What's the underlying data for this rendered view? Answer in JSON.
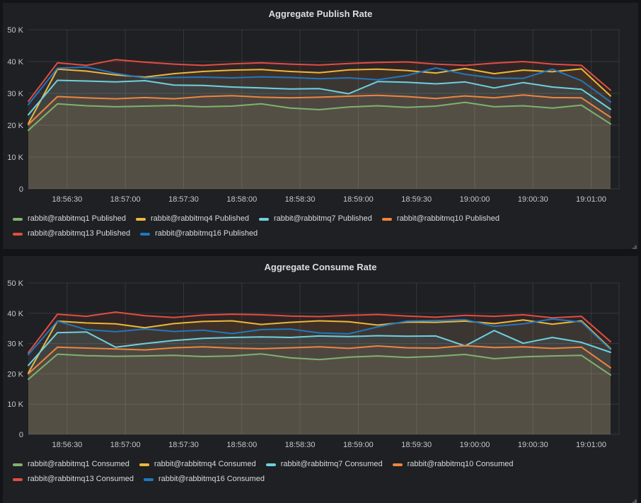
{
  "colors": {
    "page_background": "#131417",
    "panel_background": "#1e2023",
    "grid_line": "rgba(255,255,255,0.10)",
    "axis_text": "#c7c8ca",
    "legend_text": "#d8d9da",
    "title_text": "#dcdde0",
    "resize_handle": "#55585c"
  },
  "chart_data": [
    {
      "type": "line",
      "title": "Aggregate Publish Rate",
      "xlabel": "",
      "ylabel": "",
      "unit": "K",
      "ylim_k": [
        0,
        50
      ],
      "y_ticks": [
        "0",
        "10 K",
        "20 K",
        "30 K",
        "40 K",
        "50 K"
      ],
      "x_ticks": [
        "18:56:30",
        "18:57:00",
        "18:57:30",
        "18:58:00",
        "18:58:30",
        "18:59:00",
        "18:59:30",
        "19:00:00",
        "19:00:30",
        "19:01:00"
      ],
      "x_tick_interval_s": 30,
      "sample_interval_s": 15,
      "x_span_s": 300,
      "grid": true,
      "legend_position": "bottom",
      "series": [
        {
          "name": "rabbit@rabbitmq1 Published",
          "color": "#7EB26D",
          "values_k": [
            18.4,
            26.7,
            26.1,
            25.8,
            26.0,
            26.2,
            25.8,
            26.0,
            26.7,
            25.4,
            24.9,
            25.7,
            26.1,
            25.6,
            26.0,
            27.2,
            25.8,
            26.1,
            25.4,
            26.3,
            20.4
          ]
        },
        {
          "name": "rabbit@rabbitmq4 Published",
          "color": "#EAB839",
          "values_k": [
            20.5,
            37.6,
            37.0,
            35.8,
            35.1,
            36.2,
            36.9,
            37.3,
            37.5,
            36.9,
            36.5,
            37.4,
            37.6,
            37.2,
            36.4,
            37.8,
            36.2,
            37.3,
            36.8,
            37.7,
            29.2
          ]
        },
        {
          "name": "rabbit@rabbitmq7 Published",
          "color": "#6ED0E0",
          "values_k": [
            23.3,
            34.1,
            33.9,
            33.6,
            34.0,
            32.6,
            32.5,
            32.0,
            31.7,
            31.4,
            31.5,
            29.9,
            33.7,
            33.5,
            33.0,
            33.6,
            31.7,
            33.4,
            32.0,
            31.3,
            25.0
          ]
        },
        {
          "name": "rabbit@rabbitmq10 Published",
          "color": "#EF843C",
          "values_k": [
            20.2,
            29.0,
            28.6,
            28.3,
            28.7,
            28.3,
            29.0,
            29.3,
            28.8,
            28.6,
            28.8,
            29.1,
            29.4,
            29.0,
            28.4,
            29.2,
            28.6,
            29.5,
            28.7,
            28.6,
            22.5
          ]
        },
        {
          "name": "rabbit@rabbitmq13 Published",
          "color": "#E24D42",
          "values_k": [
            27.5,
            39.6,
            38.8,
            40.6,
            39.8,
            39.2,
            38.8,
            39.3,
            39.6,
            39.2,
            38.9,
            39.4,
            39.7,
            39.9,
            39.2,
            38.8,
            39.5,
            40.0,
            39.2,
            38.8,
            31.0
          ]
        },
        {
          "name": "rabbit@rabbitmq16 Published",
          "color": "#1F78C1",
          "values_k": [
            26.5,
            37.9,
            38.3,
            36.3,
            34.8,
            35.0,
            35.1,
            34.9,
            35.2,
            35.0,
            34.6,
            34.9,
            34.3,
            35.6,
            38.0,
            36.0,
            34.8,
            34.7,
            37.6,
            34.0,
            27.3
          ]
        }
      ]
    },
    {
      "type": "line",
      "title": "Aggregate Consume Rate",
      "xlabel": "",
      "ylabel": "",
      "unit": "K",
      "ylim_k": [
        0,
        50
      ],
      "y_ticks": [
        "0",
        "10 K",
        "20 K",
        "30 K",
        "40 K",
        "50 K"
      ],
      "x_ticks": [
        "18:56:30",
        "18:57:00",
        "18:57:30",
        "18:58:00",
        "18:58:30",
        "18:59:00",
        "18:59:30",
        "19:00:00",
        "19:00:30",
        "19:01:00"
      ],
      "x_tick_interval_s": 30,
      "sample_interval_s": 15,
      "x_span_s": 300,
      "grid": true,
      "legend_position": "bottom",
      "series": [
        {
          "name": "rabbit@rabbitmq1 Consumed",
          "color": "#7EB26D",
          "values_k": [
            18.2,
            26.5,
            26.0,
            25.8,
            25.9,
            26.1,
            25.7,
            25.9,
            26.6,
            25.3,
            24.7,
            25.5,
            25.9,
            25.4,
            25.8,
            26.4,
            25.0,
            25.6,
            25.9,
            26.1,
            19.6
          ]
        },
        {
          "name": "rabbit@rabbitmq4 Consumed",
          "color": "#EAB839",
          "values_k": [
            20.3,
            37.4,
            36.8,
            36.5,
            35.2,
            36.6,
            37.3,
            37.5,
            36.3,
            37.0,
            37.5,
            37.2,
            36.1,
            37.1,
            37.0,
            37.4,
            36.6,
            37.8,
            36.4,
            37.5,
            28.3
          ]
        },
        {
          "name": "rabbit@rabbitmq7 Consumed",
          "color": "#6ED0E0",
          "values_k": [
            22.8,
            33.6,
            33.8,
            28.8,
            30.0,
            31.0,
            31.7,
            32.0,
            32.2,
            32.0,
            32.5,
            32.3,
            32.6,
            32.4,
            32.5,
            29.2,
            34.3,
            30.1,
            32.0,
            30.4,
            27.1
          ]
        },
        {
          "name": "rabbit@rabbitmq10 Consumed",
          "color": "#EF843C",
          "values_k": [
            20.0,
            28.8,
            28.5,
            28.2,
            27.9,
            28.6,
            28.9,
            28.5,
            28.3,
            28.6,
            28.9,
            28.4,
            29.2,
            28.6,
            28.5,
            29.3,
            28.7,
            28.9,
            28.4,
            28.8,
            22.0
          ]
        },
        {
          "name": "rabbit@rabbitmq13 Consumed",
          "color": "#E24D42",
          "values_k": [
            27.0,
            39.7,
            39.0,
            40.4,
            39.2,
            38.6,
            39.4,
            39.7,
            39.5,
            39.1,
            38.9,
            39.3,
            39.6,
            39.1,
            38.7,
            39.3,
            39.0,
            39.5,
            38.5,
            39.0,
            30.6
          ]
        },
        {
          "name": "rabbit@rabbitmq16 Consumed",
          "color": "#1F78C1",
          "values_k": [
            26.3,
            37.4,
            34.6,
            33.9,
            34.8,
            34.0,
            34.4,
            33.3,
            34.6,
            34.8,
            33.5,
            33.2,
            35.5,
            37.4,
            37.6,
            37.9,
            35.7,
            36.5,
            38.1,
            37.1,
            28.0
          ]
        }
      ]
    }
  ]
}
